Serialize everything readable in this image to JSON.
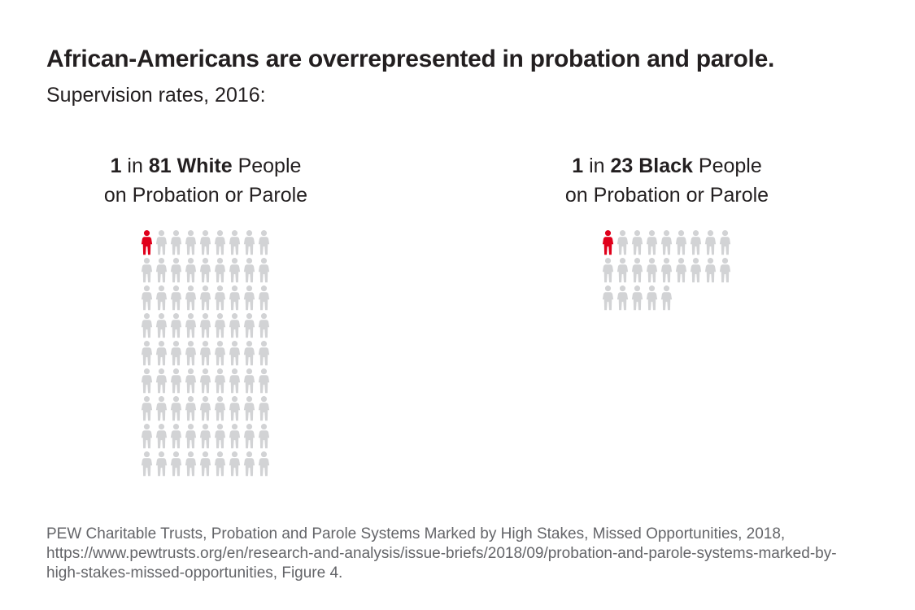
{
  "header": {
    "title": "African-Americans are overrepresented in probation and parole.",
    "subtitle": "Supervision rates, 2016:"
  },
  "source": {
    "lines": [
      "PEW Charitable Trusts, Probation and Parole Systems Marked by High Stakes, Missed Opportunities, 2018,",
      "https://www.pewtrusts.org/en/research-and-analysis/issue-briefs/2018/09/probation-and-parole-systems-marked-by-",
      "high-stakes-missed-opportunities, Figure 4."
    ]
  },
  "colors": {
    "highlight_red": "#e0001b",
    "icon_gray": "#d2d3d5",
    "text_dark": "#231f20",
    "source_gray": "#646569",
    "background": "#ffffff"
  },
  "chart_data": {
    "type": "pictograph",
    "title": "African-Americans are overrepresented in probation and parole.",
    "subtitle": "Supervision rates, 2016:",
    "icon": "person-icon",
    "icon_unit": "1 icon = 1 person",
    "groups": [
      {
        "label_line1_segments": [
          {
            "text": "1",
            "bold": true
          },
          {
            "text": " in ",
            "bold": false
          },
          {
            "text": "81 White",
            "bold": true
          },
          {
            "text": " People",
            "bold": false
          }
        ],
        "label_line2": "on Probation or Parole",
        "ratio": "1 in 81",
        "population": "White",
        "total_icons": 81,
        "highlighted_icons": 1,
        "columns": 9
      },
      {
        "label_line1_segments": [
          {
            "text": "1",
            "bold": true
          },
          {
            "text": " in ",
            "bold": false
          },
          {
            "text": "23 Black",
            "bold": true
          },
          {
            "text": " People",
            "bold": false
          }
        ],
        "label_line2": "on Probation or Parole",
        "ratio": "1 in 23",
        "population": "Black",
        "total_icons": 23,
        "highlighted_icons": 1,
        "columns": 9
      }
    ],
    "source": "PEW Charitable Trusts, Probation and Parole Systems Marked by High Stakes, Missed Opportunities, 2018, https://www.pewtrusts.org/en/research-and-analysis/issue-briefs/2018/09/probation-and-parole-systems-marked-by-high-stakes-missed-opportunities, Figure 4."
  }
}
